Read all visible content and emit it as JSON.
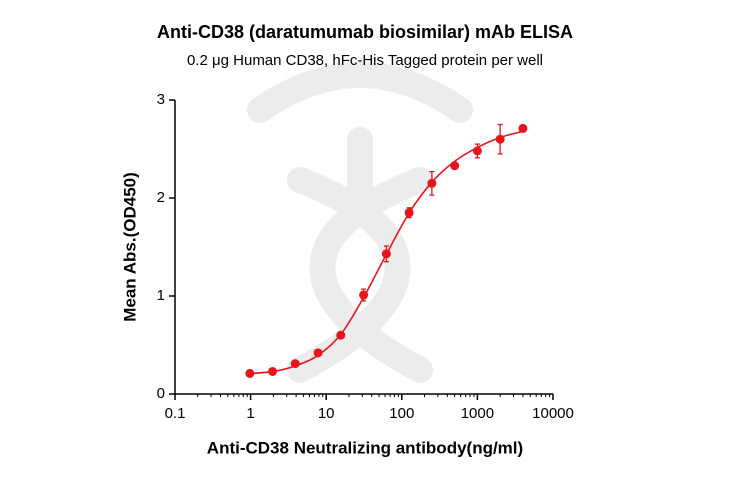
{
  "chart_data": {
    "type": "scatter",
    "title": "Anti-CD38 (daratumumab biosimilar) mAb ELISA",
    "subtitle": "0.2 μg Human CD38, hFc-His Tagged protein per well",
    "x_label": "Anti-CD38 Neutralizing antibody(ng/ml)",
    "y_label": "Mean Abs.(OD450)",
    "log_x": true,
    "color": "#e8141b",
    "x": [
      0.977,
      1.95,
      3.9,
      7.8,
      15.6,
      31.25,
      62.5,
      125,
      250,
      500,
      1000,
      2000,
      4000
    ],
    "values": [
      0.21,
      0.23,
      0.31,
      0.42,
      0.6,
      1.01,
      1.43,
      1.85,
      2.15,
      2.33,
      2.48,
      2.6,
      2.71
    ],
    "errors": [
      null,
      null,
      null,
      null,
      null,
      0.06,
      0.08,
      0.05,
      0.12,
      null,
      0.07,
      0.15,
      null
    ],
    "curve": {
      "x": [
        1,
        2,
        4,
        8,
        16,
        32,
        64,
        128,
        256,
        512,
        1024,
        2048,
        4000
      ],
      "values": [
        0.21,
        0.23,
        0.29,
        0.4,
        0.62,
        1.0,
        1.44,
        1.86,
        2.17,
        2.38,
        2.52,
        2.62,
        2.68
      ]
    },
    "xlim": [
      0.1,
      10000
    ],
    "xticks": [
      0.1,
      1,
      10,
      100,
      1000,
      10000
    ],
    "ylim": [
      0,
      3
    ],
    "yticks": [
      0,
      1,
      2,
      3
    ]
  }
}
